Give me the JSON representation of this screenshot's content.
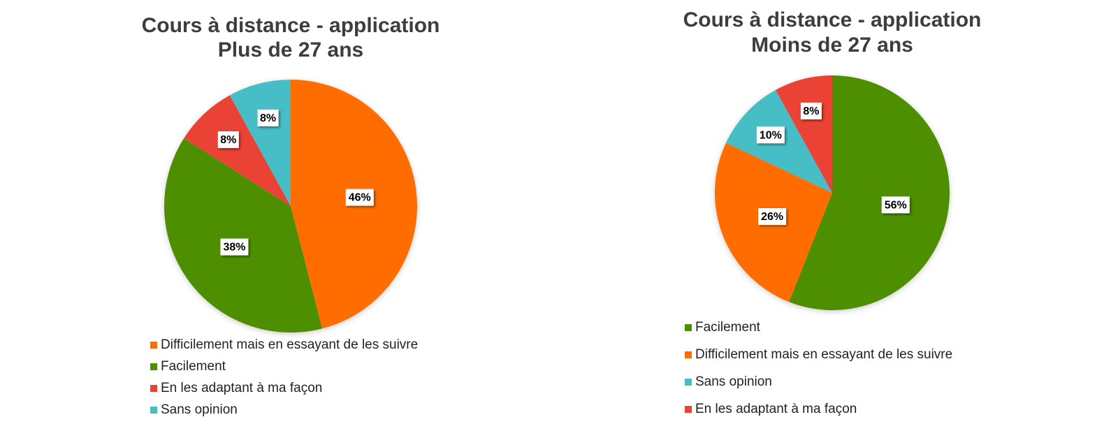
{
  "chart_data": [
    {
      "type": "pie",
      "title": "Cours à distance - application",
      "subtitle": "Plus de 27 ans",
      "categories": [
        "Difficilement mais en essayant de les suivre",
        "Facilement",
        "En les adaptant à ma façon",
        "Sans opinion"
      ],
      "values": [
        46,
        38,
        8,
        8
      ],
      "value_labels": [
        "46%",
        "38%",
        "8%",
        "8%"
      ],
      "colors": [
        "#ff6d00",
        "#4e8f00",
        "#ea4335",
        "#46bdc6"
      ],
      "legend": "bottom"
    },
    {
      "type": "pie",
      "title": "Cours à distance - application",
      "subtitle": "Moins de 27 ans",
      "categories": [
        "Facilement",
        "Difficilement mais en essayant de les suivre",
        "Sans opinion",
        "En les adaptant à ma façon"
      ],
      "values": [
        56,
        26,
        10,
        8
      ],
      "value_labels": [
        "56%",
        "26%",
        "10%",
        "8%"
      ],
      "colors": [
        "#4e8f00",
        "#ff6d00",
        "#46bdc6",
        "#ea4335"
      ],
      "legend": "bottom"
    }
  ]
}
